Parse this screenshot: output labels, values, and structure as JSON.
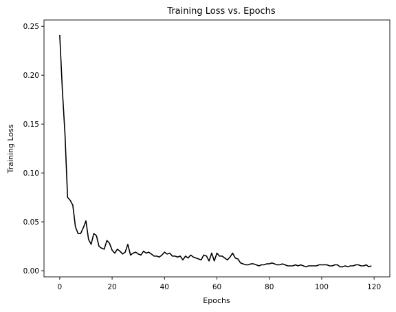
{
  "chart_data": {
    "type": "line",
    "title": "Training Loss vs. Epochs",
    "xlabel": "Epochs",
    "ylabel": "Training Loss",
    "xlim": [
      -6,
      126
    ],
    "ylim": [
      -0.0063,
      0.2565
    ],
    "xticks": [
      0,
      20,
      40,
      60,
      80,
      100,
      120
    ],
    "xtick_labels": [
      "0",
      "20",
      "40",
      "60",
      "80",
      "100",
      "120"
    ],
    "yticks": [
      0.0,
      0.05,
      0.1,
      0.15,
      0.2,
      0.25
    ],
    "ytick_labels": [
      "0.00",
      "0.05",
      "0.10",
      "0.15",
      "0.20",
      "0.25"
    ],
    "grid": false,
    "legend": "none",
    "line_color": "#000000",
    "series": [
      {
        "x": [
          0,
          1,
          2,
          3,
          4,
          5,
          6,
          7,
          8,
          9,
          10,
          11,
          12,
          13,
          14,
          15,
          16,
          17,
          18,
          19,
          20,
          21,
          22,
          23,
          24,
          25,
          26,
          27,
          28,
          29,
          30,
          31,
          32,
          33,
          34,
          35,
          36,
          37,
          38,
          39,
          40,
          41,
          42,
          43,
          44,
          45,
          46,
          47,
          48,
          49,
          50,
          51,
          52,
          53,
          54,
          55,
          56,
          57,
          58,
          59,
          60,
          61,
          62,
          63,
          64,
          65,
          66,
          67,
          68,
          69,
          70,
          71,
          72,
          73,
          74,
          75,
          76,
          77,
          78,
          79,
          80,
          81,
          82,
          83,
          84,
          85,
          86,
          87,
          88,
          89,
          90,
          91,
          92,
          93,
          94,
          95,
          96,
          97,
          98,
          99,
          100,
          101,
          102,
          103,
          104,
          105,
          106,
          107,
          108,
          109,
          110,
          111,
          112,
          113,
          114,
          115,
          116,
          117,
          118,
          119
        ],
        "values": [
          0.241,
          0.185,
          0.14,
          0.075,
          0.072,
          0.067,
          0.045,
          0.038,
          0.038,
          0.044,
          0.051,
          0.032,
          0.027,
          0.038,
          0.036,
          0.025,
          0.023,
          0.022,
          0.031,
          0.028,
          0.021,
          0.018,
          0.022,
          0.02,
          0.017,
          0.019,
          0.027,
          0.016,
          0.018,
          0.019,
          0.017,
          0.016,
          0.02,
          0.018,
          0.019,
          0.017,
          0.015,
          0.015,
          0.014,
          0.016,
          0.019,
          0.017,
          0.018,
          0.015,
          0.015,
          0.014,
          0.015,
          0.011,
          0.015,
          0.013,
          0.016,
          0.014,
          0.013,
          0.012,
          0.011,
          0.016,
          0.015,
          0.01,
          0.018,
          0.01,
          0.018,
          0.015,
          0.015,
          0.013,
          0.011,
          0.014,
          0.018,
          0.013,
          0.012,
          0.008,
          0.007,
          0.006,
          0.006,
          0.007,
          0.007,
          0.006,
          0.005,
          0.006,
          0.006,
          0.007,
          0.007,
          0.008,
          0.007,
          0.006,
          0.006,
          0.007,
          0.006,
          0.005,
          0.005,
          0.005,
          0.006,
          0.005,
          0.006,
          0.005,
          0.004,
          0.005,
          0.005,
          0.005,
          0.005,
          0.006,
          0.006,
          0.006,
          0.006,
          0.005,
          0.005,
          0.006,
          0.006,
          0.004,
          0.004,
          0.005,
          0.004,
          0.005,
          0.005,
          0.006,
          0.006,
          0.005,
          0.005,
          0.006,
          0.004,
          0.005
        ]
      }
    ]
  }
}
